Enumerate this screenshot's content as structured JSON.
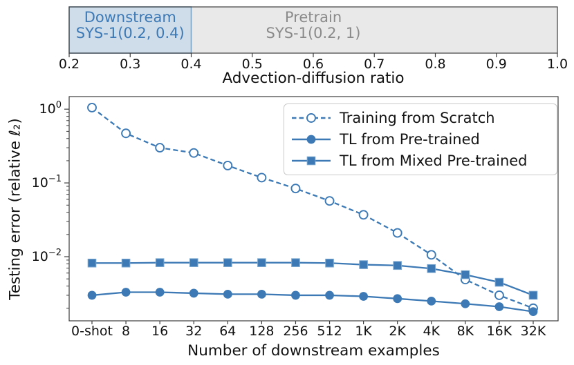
{
  "figure": {
    "colors": {
      "accent": "#3d7ab5",
      "spine": "#3c3c3c",
      "tick_text": "#111111",
      "downstream_fill": "#cfdcea",
      "downstream_border": "#7aa3c4",
      "downstream_text": "#3d7ab5",
      "pretrain_fill": "#e9e9e9",
      "pretrain_border": "#ababab",
      "pretrain_text": "#8a8a8a"
    },
    "top_panel": {
      "axis_label": "Advection-diffusion ratio",
      "xmin": 0.2,
      "xmax": 1.0,
      "ticks": [
        "0.2",
        "0.3",
        "0.4",
        "0.5",
        "0.6",
        "0.7",
        "0.8",
        "0.9",
        "1.0"
      ],
      "regions": [
        {
          "name": "pretrain",
          "line1": "Pretrain",
          "line2": "SYS-1(0.2, 1)",
          "start": 0.2,
          "end": 1.0
        },
        {
          "name": "downstream",
          "line1": "Downstream",
          "line2": "SYS-1(0.2, 0.4)",
          "start": 0.2,
          "end": 0.4
        }
      ]
    },
    "chart_data": {
      "type": "line",
      "x_categories": [
        "0-shot",
        "8",
        "16",
        "32",
        "64",
        "128",
        "256",
        "512",
        "1K",
        "2K",
        "4K",
        "8K",
        "16K",
        "32K"
      ],
      "xlabel": "Number of downstream examples",
      "ylabel": "Testing error (relative ℓ₂)",
      "yscale": "log",
      "ylim": [
        0.00135,
        1.48
      ],
      "y_tick_exponents": [
        0,
        -1,
        -2
      ],
      "grid": false,
      "legend_position": "upper right",
      "series": [
        {
          "name": "Training from Scratch",
          "line": "dashed",
          "marker": "circle-open",
          "values": [
            1.05,
            0.47,
            0.3,
            0.255,
            0.172,
            0.118,
            0.084,
            0.057,
            0.037,
            0.021,
            0.0106,
            0.0049,
            0.003,
            0.002
          ]
        },
        {
          "name": "TL from Pre-trained",
          "line": "solid",
          "marker": "circle",
          "values": [
            0.003,
            0.0033,
            0.0033,
            0.0032,
            0.0031,
            0.0031,
            0.003,
            0.003,
            0.0029,
            0.0027,
            0.0025,
            0.0023,
            0.0021,
            0.0018
          ]
        },
        {
          "name": "TL from Mixed Pre-trained",
          "line": "solid",
          "marker": "square",
          "values": [
            0.0082,
            0.0082,
            0.0083,
            0.0083,
            0.0083,
            0.0083,
            0.0083,
            0.0082,
            0.0078,
            0.0076,
            0.0069,
            0.0057,
            0.0045,
            0.003
          ]
        }
      ]
    }
  }
}
